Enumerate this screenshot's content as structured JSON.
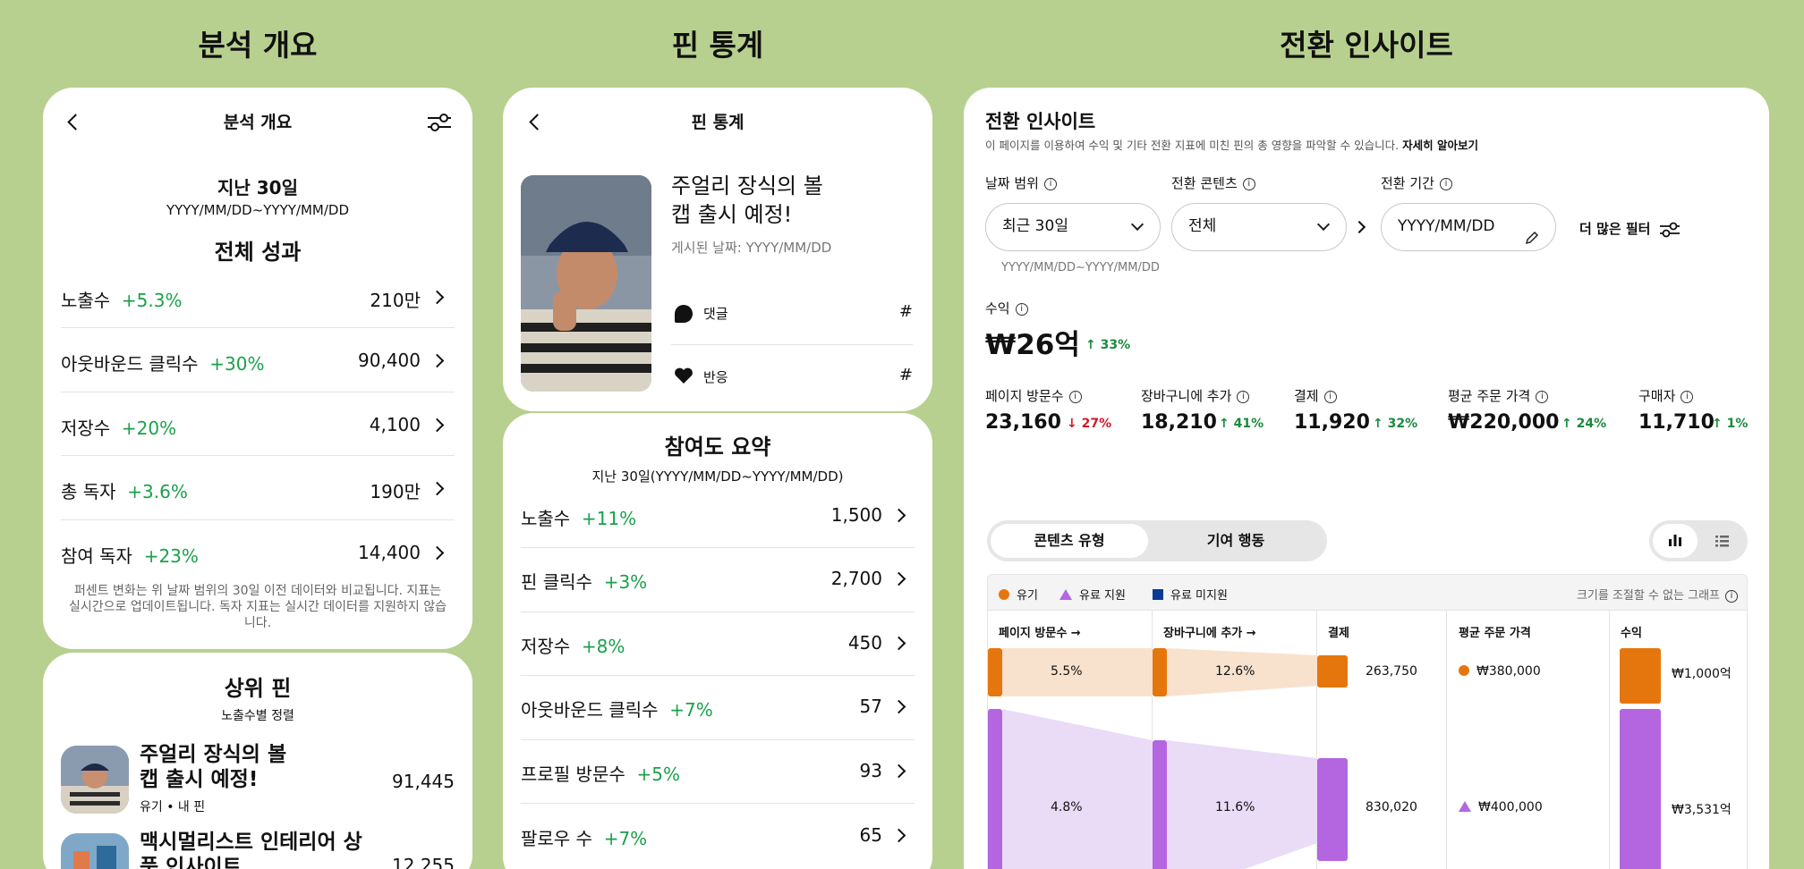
{
  "sections": {
    "overview": "분석 개요",
    "pin_stats": "핀 통계",
    "conversion": "전환 인사이트"
  },
  "overview": {
    "header_title": "분석 개요",
    "range_title": "지난 30일",
    "range_dates": "YYYY/MM/DD~YYYY/MM/DD",
    "perf_title": "전체 성과",
    "rows": [
      {
        "label": "노출수",
        "change": "+5.3%",
        "value": "210만"
      },
      {
        "label": "아웃바운드 클릭수",
        "change": "+30%",
        "value": "90,400"
      },
      {
        "label": "저장수",
        "change": "+20%",
        "value": "4,100"
      },
      {
        "label": "총 독자",
        "change": "+3.6%",
        "value": "190만"
      },
      {
        "label": "참여 독자",
        "change": "+23%",
        "value": "14,400"
      }
    ],
    "footnote": "퍼센트 변화는 위 날짜 범위의 30일 이전 데이터와 비교됩니다. 지표는 실시간으로 업데이트됩니다. 독자 지표는 실시간 데이터를 지원하지 않습니다.",
    "top_pins_title": "상위 핀",
    "top_pins_sort": "노출수별 정렬",
    "pins": [
      {
        "title": "주얼리 장식의 볼캡 출시 예정!",
        "sub": "유기 • 내 핀",
        "value": "91,445"
      },
      {
        "title": "맥시멀리스트 인테리어 상품 인사이트",
        "sub": "",
        "value": "12,255"
      }
    ]
  },
  "pin": {
    "header_title": "핀 통계",
    "pin_title": "주얼리 장식의 볼캡 출시 예정!",
    "posted": "게시된 날짜: YYYY/MM/DD",
    "comments_label": "댓글",
    "comments_value": "#",
    "reactions_label": "반응",
    "reactions_value": "#",
    "summary_title": "참여도 요약",
    "summary_range": "지난 30일(YYYY/MM/DD~YYYY/MM/DD)",
    "rows": [
      {
        "label": "노출수",
        "change": "+11%",
        "value": "1,500"
      },
      {
        "label": "핀 클릭수",
        "change": "+3%",
        "value": "2,700"
      },
      {
        "label": "저장수",
        "change": "+8%",
        "value": "450"
      },
      {
        "label": "아웃바운드 클릭수",
        "change": "+7%",
        "value": "57"
      },
      {
        "label": "프로필 방문수",
        "change": "+5%",
        "value": "93"
      },
      {
        "label": "팔로우 수",
        "change": "+7%",
        "value": "65"
      }
    ]
  },
  "conv": {
    "title": "전환 인사이트",
    "desc": "이 페이지를 이용하여 수익 및 기타 전환 지표에 미친 핀의 총 영향을 파악할 수 있습니다.",
    "learn_more": "자세히 알아보기",
    "filters": {
      "date_label": "날짜 범위",
      "date_value": "최근 30일",
      "date_sub": "YYYY/MM/DD~YYYY/MM/DD",
      "content_label": "전환 콘텐츠",
      "content_value": "전체",
      "period_label": "전환 기간",
      "period_value": "YYYY/MM/DD",
      "more": "더 많은 필터"
    },
    "revenue_label": "수익",
    "revenue_value": "₩26억",
    "revenue_change": "33%",
    "metrics": [
      {
        "label": "페이지 방문수",
        "value": "23,160",
        "change": "27%",
        "dir": "down"
      },
      {
        "label": "장바구니에 추가",
        "value": "18,210",
        "change": "41%",
        "dir": "up"
      },
      {
        "label": "결제",
        "value": "11,920",
        "change": "32%",
        "dir": "up"
      },
      {
        "label": "평균 주문 가격",
        "value": "₩220,000",
        "change": "24%",
        "dir": "up"
      },
      {
        "label": "구매자",
        "value": "11,710",
        "change": "1%",
        "dir": "up"
      }
    ],
    "tabs": [
      "콘텐츠 유형",
      "기여 행동"
    ],
    "legend": [
      "유기",
      "유료 지원",
      "유료 미지원"
    ],
    "legend_note": "크기를 조절할 수 없는 그래프",
    "col_headers": [
      "페이지 방문수 →",
      "장바구니에 추가 →",
      "결제",
      "평균 주문 가격",
      "수익"
    ],
    "flow": [
      {
        "visit_rate": "5.5%",
        "cart_rate": "12.6%",
        "checkout": "263,750",
        "aov": "₩380,000",
        "revenue": "₩1,000억"
      },
      {
        "visit_rate": "4.8%",
        "cart_rate": "11.6%",
        "checkout": "830,020",
        "aov": "₩400,000",
        "revenue": "₩3,531억"
      }
    ],
    "colors": {
      "organic": "#e5760e",
      "paid": "#b366e0",
      "unpaid": "#0a3d91"
    }
  }
}
